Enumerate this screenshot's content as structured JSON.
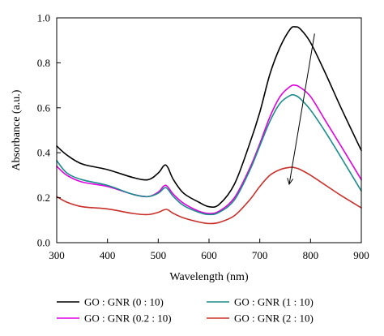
{
  "chart_data": {
    "type": "line",
    "xlabel": "Wavelength (nm)",
    "ylabel": "Absorbance (a.u.)",
    "xlim": [
      300,
      900
    ],
    "ylim": [
      0,
      1.0
    ],
    "xticks": [
      300,
      400,
      500,
      600,
      700,
      800,
      900
    ],
    "yticks": [
      0.0,
      0.2,
      0.4,
      0.6,
      0.8,
      1.0
    ],
    "xtick_labels": [
      "300",
      "400",
      "500",
      "600",
      "700",
      "800",
      "900"
    ],
    "ytick_labels": [
      "0.0",
      "0.2",
      "0.4",
      "0.6",
      "0.8",
      "1.0"
    ],
    "grid": false,
    "legend_position": "bottom",
    "series": [
      {
        "name": "GO : GNR (0 : 10)",
        "color": "#000000",
        "x": [
          300,
          320,
          350,
          400,
          450,
          480,
          500,
          510,
          515,
          520,
          530,
          550,
          580,
          600,
          620,
          650,
          680,
          700,
          720,
          740,
          760,
          770,
          780,
          800,
          830,
          860,
          900
        ],
        "y": [
          0.43,
          0.39,
          0.35,
          0.325,
          0.29,
          0.28,
          0.31,
          0.34,
          0.345,
          0.33,
          0.28,
          0.22,
          0.18,
          0.16,
          0.17,
          0.26,
          0.44,
          0.58,
          0.75,
          0.87,
          0.95,
          0.96,
          0.95,
          0.89,
          0.75,
          0.6,
          0.41
        ]
      },
      {
        "name": "GO : GNR (0.2 : 10)",
        "color": "#e000e0",
        "x": [
          300,
          320,
          350,
          400,
          450,
          480,
          500,
          510,
          515,
          520,
          530,
          550,
          580,
          600,
          620,
          650,
          680,
          700,
          720,
          740,
          760,
          770,
          780,
          800,
          830,
          860,
          900
        ],
        "y": [
          0.34,
          0.3,
          0.27,
          0.25,
          0.215,
          0.205,
          0.225,
          0.25,
          0.255,
          0.245,
          0.215,
          0.175,
          0.14,
          0.13,
          0.14,
          0.2,
          0.33,
          0.44,
          0.56,
          0.65,
          0.695,
          0.7,
          0.69,
          0.65,
          0.54,
          0.43,
          0.28
        ]
      },
      {
        "name": "GO : GNR (1 : 10)",
        "color": "#1a8c8c",
        "x": [
          300,
          320,
          350,
          400,
          450,
          480,
          500,
          510,
          515,
          520,
          530,
          550,
          580,
          600,
          620,
          650,
          680,
          700,
          720,
          740,
          760,
          770,
          780,
          800,
          830,
          860,
          900
        ],
        "y": [
          0.365,
          0.31,
          0.28,
          0.255,
          0.215,
          0.205,
          0.22,
          0.24,
          0.245,
          0.235,
          0.205,
          0.165,
          0.135,
          0.125,
          0.135,
          0.19,
          0.32,
          0.43,
          0.54,
          0.62,
          0.655,
          0.655,
          0.64,
          0.59,
          0.49,
          0.38,
          0.23
        ]
      },
      {
        "name": "GO : GNR (2 : 10)",
        "color": "#c8302a",
        "x": [
          300,
          320,
          350,
          400,
          450,
          480,
          500,
          510,
          515,
          520,
          530,
          550,
          580,
          600,
          620,
          650,
          680,
          700,
          720,
          740,
          760,
          770,
          780,
          800,
          830,
          860,
          900
        ],
        "y": [
          0.205,
          0.18,
          0.16,
          0.15,
          0.13,
          0.125,
          0.135,
          0.145,
          0.148,
          0.145,
          0.13,
          0.11,
          0.092,
          0.085,
          0.09,
          0.12,
          0.19,
          0.25,
          0.3,
          0.325,
          0.335,
          0.333,
          0.325,
          0.3,
          0.255,
          0.21,
          0.155
        ]
      }
    ],
    "annotation": {
      "type": "arrow",
      "from": [
        808,
        0.93
      ],
      "to": [
        758,
        0.26
      ],
      "color": "#000000"
    }
  }
}
